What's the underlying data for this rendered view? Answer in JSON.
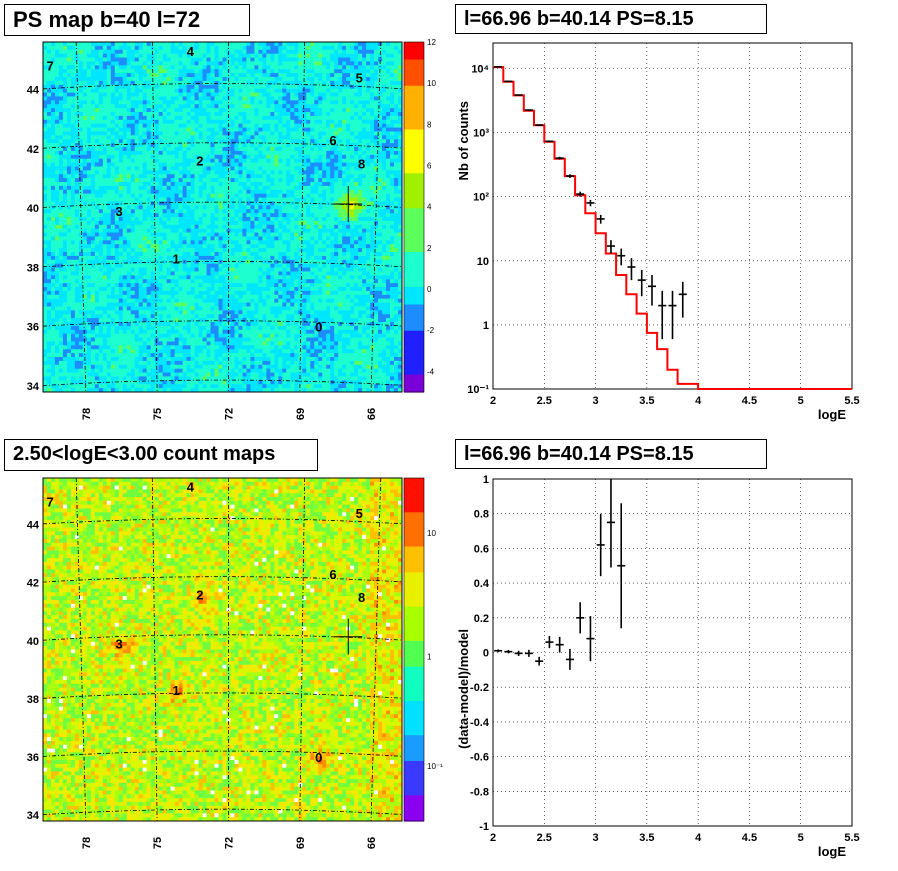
{
  "panels": {
    "ps_map": {
      "title": "PS map b=40 l=72",
      "x_ticks": [
        "78",
        "75",
        "72",
        "69",
        "66"
      ],
      "y_ticks": [
        "34",
        "36",
        "38",
        "40",
        "42",
        "44"
      ],
      "colorbar_ticks": [
        "12",
        "10",
        "8",
        "6",
        "4",
        "2",
        "0",
        "-2",
        "-4"
      ],
      "point_labels": [
        "0",
        "1",
        "2",
        "3",
        "4",
        "5",
        "6",
        "7",
        "8"
      ]
    },
    "count_map": {
      "title": "2.50<logE<3.00 count maps",
      "x_ticks": [
        "78",
        "75",
        "72",
        "69",
        "66"
      ],
      "y_ticks": [
        "34",
        "36",
        "38",
        "40",
        "42",
        "44"
      ],
      "colorbar_ticks": [
        "10",
        "1",
        "10⁻¹"
      ],
      "point_labels": [
        "0",
        "1",
        "2",
        "3",
        "4",
        "5",
        "6",
        "7",
        "8"
      ]
    },
    "spectrum": {
      "title": "l=66.96 b=40.14 PS=8.15"
    },
    "residual": {
      "title": "l=66.96 b=40.14 PS=8.15"
    }
  },
  "chart_data": [
    {
      "type": "heatmap",
      "title": "PS map b=40 l=72",
      "xlabel": "",
      "ylabel": "",
      "x_ticks": [
        78,
        75,
        72,
        69,
        66
      ],
      "y_ticks": [
        34,
        36,
        38,
        40,
        42,
        44
      ],
      "xlim": [
        79.8,
        64.7
      ],
      "ylim": [
        33.8,
        45.6
      ],
      "colorbar": {
        "min": -5,
        "max": 12,
        "ticks": [
          12,
          10,
          8,
          6,
          4,
          2,
          0,
          -2,
          -4
        ]
      },
      "sources": [
        {
          "label": "0",
          "l": 68.2,
          "b": 36.0
        },
        {
          "label": "1",
          "l": 74.2,
          "b": 38.3
        },
        {
          "label": "2",
          "l": 73.2,
          "b": 41.6
        },
        {
          "label": "3",
          "l": 76.6,
          "b": 39.9
        },
        {
          "label": "4",
          "l": 73.6,
          "b": 45.3
        },
        {
          "label": "5",
          "l": 66.5,
          "b": 44.4
        },
        {
          "label": "6",
          "l": 67.6,
          "b": 42.3
        },
        {
          "label": "7",
          "l": 79.5,
          "b": 44.8
        },
        {
          "label": "8",
          "l": 66.4,
          "b": 41.5
        }
      ],
      "marker": {
        "l": 66.96,
        "b": 40.14
      }
    },
    {
      "type": "heatmap",
      "title": "2.50<logE<3.00 count maps",
      "x_ticks": [
        78,
        75,
        72,
        69,
        66
      ],
      "y_ticks": [
        34,
        36,
        38,
        40,
        42,
        44
      ],
      "colorbar": {
        "scale": "log",
        "ticks": [
          "10",
          "1",
          "10⁻¹"
        ]
      },
      "marker": {
        "l": 66.96,
        "b": 40.14
      }
    },
    {
      "type": "line",
      "title": "l=66.96 b=40.14 PS=8.15",
      "xlabel": "logE",
      "ylabel": "Nb of counts",
      "xlim": [
        2,
        5.5
      ],
      "ylim": [
        0.1,
        25000
      ],
      "yscale": "log",
      "grid": true,
      "x_ticks": [
        "2",
        "2.5",
        "3",
        "3.5",
        "4",
        "4.5",
        "5",
        "5.5"
      ],
      "y_ticks": [
        {
          "v": 0.1,
          "t": "10⁻¹"
        },
        {
          "v": 1,
          "t": "1"
        },
        {
          "v": 10,
          "t": "10"
        },
        {
          "v": 100,
          "t": "10²"
        },
        {
          "v": 1000,
          "t": "10³"
        },
        {
          "v": 10000,
          "t": "10⁴"
        }
      ],
      "model_edges": [
        2.0,
        2.1,
        2.2,
        2.3,
        2.4,
        2.5,
        2.6,
        2.7,
        2.8,
        2.9,
        3.0,
        3.1,
        3.2,
        3.3,
        3.4,
        3.5,
        3.6,
        3.7,
        3.8,
        3.9,
        4.0,
        5.5
      ],
      "model_values": [
        10500,
        6200,
        3800,
        2200,
        1300,
        720,
        390,
        210,
        105,
        55,
        27,
        13,
        6,
        3,
        1.5,
        0.75,
        0.42,
        0.2,
        0.12,
        0.12,
        0.1
      ],
      "data_points": [
        {
          "x": 2.05,
          "y": 10600,
          "err": 100
        },
        {
          "x": 2.15,
          "y": 6300,
          "err": 80
        },
        {
          "x": 2.25,
          "y": 3850,
          "err": 60
        },
        {
          "x": 2.35,
          "y": 2250,
          "err": 47
        },
        {
          "x": 2.45,
          "y": 1310,
          "err": 36
        },
        {
          "x": 2.55,
          "y": 730,
          "err": 27
        },
        {
          "x": 2.65,
          "y": 400,
          "err": 20
        },
        {
          "x": 2.75,
          "y": 210,
          "err": 14
        },
        {
          "x": 2.85,
          "y": 110,
          "err": 10
        },
        {
          "x": 2.95,
          "y": 80,
          "err": 9
        },
        {
          "x": 3.05,
          "y": 45,
          "err": 7
        },
        {
          "x": 3.15,
          "y": 17,
          "err": 4
        },
        {
          "x": 3.25,
          "y": 12,
          "err": 3.5
        },
        {
          "x": 3.35,
          "y": 8,
          "err": 3
        },
        {
          "x": 3.45,
          "y": 5,
          "err": 2.2
        },
        {
          "x": 3.55,
          "y": 4,
          "err": 2
        },
        {
          "x": 3.65,
          "y": 2,
          "err": 1.4
        },
        {
          "x": 3.75,
          "y": 2,
          "err": 1.4
        },
        {
          "x": 3.85,
          "y": 3,
          "err": 1.7
        }
      ]
    },
    {
      "type": "scatter",
      "title": "l=66.96 b=40.14 PS=8.15",
      "xlabel": "logE",
      "ylabel": "(data-model)/model",
      "xlim": [
        2,
        5.5
      ],
      "ylim": [
        -1,
        1
      ],
      "grid": true,
      "x_ticks": [
        "2",
        "2.5",
        "3",
        "3.5",
        "4",
        "4.5",
        "5",
        "5.5"
      ],
      "y_ticks": [
        "-1",
        "-0.8",
        "-0.6",
        "-0.4",
        "-0.2",
        "0",
        "0.2",
        "0.4",
        "0.6",
        "0.8",
        "1"
      ],
      "data_points": [
        {
          "x": 2.05,
          "y": 0.01,
          "err": 0.008
        },
        {
          "x": 2.15,
          "y": 0.005,
          "err": 0.01
        },
        {
          "x": 2.25,
          "y": -0.005,
          "err": 0.015
        },
        {
          "x": 2.35,
          "y": -0.005,
          "err": 0.02
        },
        {
          "x": 2.45,
          "y": -0.05,
          "err": 0.025
        },
        {
          "x": 2.55,
          "y": 0.06,
          "err": 0.035
        },
        {
          "x": 2.65,
          "y": 0.045,
          "err": 0.045
        },
        {
          "x": 2.75,
          "y": -0.04,
          "err": 0.06
        },
        {
          "x": 2.85,
          "y": 0.2,
          "err": 0.09
        },
        {
          "x": 2.95,
          "y": 0.08,
          "err": 0.13
        },
        {
          "x": 3.05,
          "y": 0.62,
          "err": 0.18
        },
        {
          "x": 3.15,
          "y": 0.75,
          "err": 0.26
        },
        {
          "x": 3.25,
          "y": 0.5,
          "err": 0.36
        }
      ]
    }
  ]
}
